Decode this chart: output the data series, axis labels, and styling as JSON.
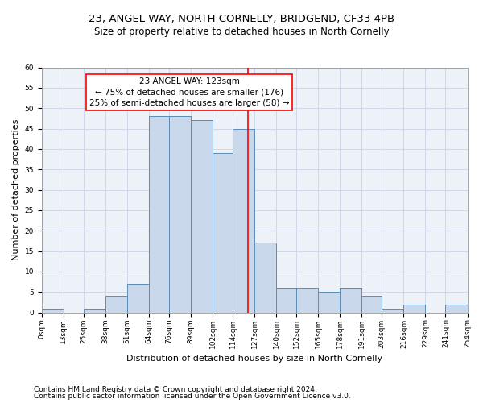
{
  "title1": "23, ANGEL WAY, NORTH CORNELLY, BRIDGEND, CF33 4PB",
  "title2": "Size of property relative to detached houses in North Cornelly",
  "xlabel": "Distribution of detached houses by size in North Cornelly",
  "ylabel": "Number of detached properties",
  "footer1": "Contains HM Land Registry data © Crown copyright and database right 2024.",
  "footer2": "Contains public sector information licensed under the Open Government Licence v3.0.",
  "annotation_line1": "23 ANGEL WAY: 123sqm",
  "annotation_line2": "← 75% of detached houses are smaller (176)",
  "annotation_line3": "25% of semi-detached houses are larger (58) →",
  "property_size": 123,
  "bin_edges": [
    0,
    13,
    25,
    38,
    51,
    64,
    76,
    89,
    102,
    114,
    127,
    140,
    152,
    165,
    178,
    191,
    203,
    216,
    229,
    241,
    254
  ],
  "bar_heights": [
    1,
    0,
    1,
    4,
    7,
    48,
    48,
    47,
    39,
    45,
    17,
    6,
    6,
    5,
    6,
    4,
    1,
    2,
    0,
    2
  ],
  "bar_color": "#c9d9eb",
  "bar_edge_color": "#5b8db8",
  "vline_color": "red",
  "annotation_box_color": "red",
  "annotation_fill": "white",
  "grid_color": "#c8d4e3",
  "bg_color": "#edf2f8",
  "ylim": [
    0,
    60
  ],
  "yticks": [
    0,
    5,
    10,
    15,
    20,
    25,
    30,
    35,
    40,
    45,
    50,
    55,
    60
  ],
  "xtick_labels": [
    "0sqm",
    "13sqm",
    "25sqm",
    "38sqm",
    "51sqm",
    "64sqm",
    "76sqm",
    "89sqm",
    "102sqm",
    "114sqm",
    "127sqm",
    "140sqm",
    "152sqm",
    "165sqm",
    "178sqm",
    "191sqm",
    "203sqm",
    "216sqm",
    "229sqm",
    "241sqm",
    "254sqm"
  ],
  "title1_fontsize": 9.5,
  "title2_fontsize": 8.5,
  "xlabel_fontsize": 8,
  "ylabel_fontsize": 8,
  "footer_fontsize": 6.5,
  "tick_fontsize": 6.5,
  "annotation_fontsize": 7.5
}
